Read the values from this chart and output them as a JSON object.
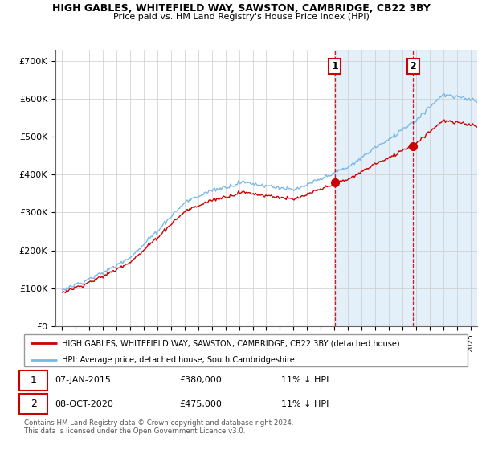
{
  "title": "HIGH GABLES, WHITEFIELD WAY, SAWSTON, CAMBRIDGE, CB22 3BY",
  "subtitle": "Price paid vs. HM Land Registry's House Price Index (HPI)",
  "legend_line1": "HIGH GABLES, WHITEFIELD WAY, SAWSTON, CAMBRIDGE, CB22 3BY (detached house)",
  "legend_line2": "HPI: Average price, detached house, South Cambridgeshire",
  "sale1_date": "07-JAN-2015",
  "sale1_price": "£380,000",
  "sale1_hpi": "11% ↓ HPI",
  "sale2_date": "08-OCT-2020",
  "sale2_price": "£475,000",
  "sale2_hpi": "11% ↓ HPI",
  "footer": "Contains HM Land Registry data © Crown copyright and database right 2024.\nThis data is licensed under the Open Government Licence v3.0.",
  "hpi_color": "#7ab8e8",
  "price_color": "#cc0000",
  "ylim": [
    0,
    730000
  ],
  "yticks": [
    0,
    100000,
    200000,
    300000,
    400000,
    500000,
    600000,
    700000
  ],
  "ytick_labels": [
    "£0",
    "£100K",
    "£200K",
    "£300K",
    "£400K",
    "£500K",
    "£600K",
    "£700K"
  ],
  "sale1_year": 2015.04,
  "sale2_year": 2020.78,
  "background_color": "#ffffff",
  "grid_color": "#cccccc",
  "shade_color": "#d8eaf8"
}
